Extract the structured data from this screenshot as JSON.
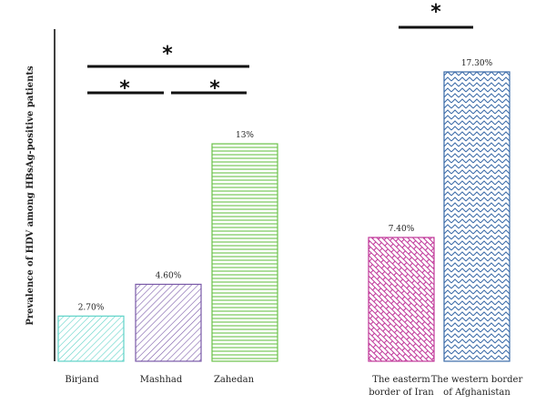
{
  "chart_data": {
    "type": "bar",
    "ylabel": "Prevalence of HDV among HBsAg-positive patients",
    "categories": [
      [
        "Birjand"
      ],
      [
        "Mashhad"
      ],
      [
        "Zahedan"
      ],
      [
        "The easterm",
        "border of Iran"
      ],
      [
        "The western border",
        "of Afghanistan"
      ]
    ],
    "values": [
      2.7,
      4.6,
      13.0,
      7.4,
      17.3
    ],
    "value_labels": [
      "2.70%",
      "4.60%",
      "13%",
      "7.40%",
      "17.30%"
    ],
    "colors": [
      "#5fd3c8",
      "#7a5aa8",
      "#6cc24a",
      "#c0399a",
      "#3a6aa8"
    ],
    "patterns": [
      "diagonal",
      "diagonal",
      "horizontal",
      "brick",
      "zigzag"
    ],
    "ylim": [
      0,
      20
    ],
    "grid": false,
    "significance": [
      {
        "from": 0,
        "to": 1,
        "label": "*"
      },
      {
        "from": 1,
        "to": 2,
        "label": "*"
      },
      {
        "from": 0,
        "to": 2,
        "label": "*"
      },
      {
        "from": 3,
        "to": 4,
        "label": "*"
      }
    ]
  }
}
